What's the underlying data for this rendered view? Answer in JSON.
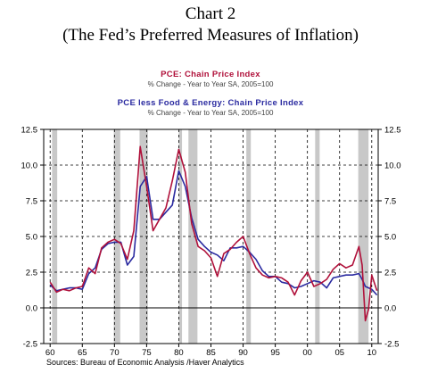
{
  "title": "Chart 2",
  "subtitle": "(The Fed’s Preferred Measures of Inflation)",
  "source": "Sources:  Bureau of Economic Analysis /Haver Analytics",
  "colors": {
    "pce": "#b0103a",
    "core": "#2a2aa0",
    "recession": "#c8c8c8"
  },
  "chart_data": {
    "type": "line",
    "xlim": [
      1959,
      2011
    ],
    "ylim": [
      -2.5,
      12.5
    ],
    "yticks": [
      -2.5,
      0.0,
      2.5,
      5.0,
      7.5,
      10.0,
      12.5
    ],
    "ytick_labels": [
      "-2.5",
      "0.0",
      "2.5",
      "5.0",
      "7.5",
      "10.0",
      "12.5"
    ],
    "xticks": [
      1960,
      1965,
      1970,
      1975,
      1980,
      1985,
      1990,
      1995,
      2000,
      2005,
      2010
    ],
    "xtick_labels": [
      "60",
      "65",
      "70",
      "75",
      "80",
      "85",
      "90",
      "95",
      "00",
      "05",
      "10"
    ],
    "grid": true,
    "recessions": [
      [
        1960.3,
        1961.1
      ],
      [
        1969.9,
        1970.9
      ],
      [
        1973.9,
        1975.2
      ],
      [
        1980.0,
        1980.5
      ],
      [
        1981.5,
        1982.9
      ],
      [
        1990.5,
        1991.2
      ],
      [
        2001.2,
        2001.9
      ],
      [
        2007.9,
        2009.5
      ]
    ],
    "series": [
      {
        "name": "PCE: Chain Price Index",
        "unit_label": "% Change - Year to Year    SA, 2005=100",
        "x": [
          1960,
          1961,
          1962,
          1963,
          1964,
          1965,
          1966,
          1967,
          1968,
          1969,
          1970,
          1971,
          1972,
          1973,
          1974,
          1975,
          1976,
          1977,
          1978,
          1979,
          1980,
          1981,
          1982,
          1983,
          1984,
          1985,
          1986,
          1987,
          1988,
          1989,
          1990,
          1991,
          1992,
          1993,
          1994,
          1995,
          1996,
          1997,
          1998,
          1999,
          2000,
          2001,
          2002,
          2003,
          2004,
          2005,
          2006,
          2007,
          2008,
          2008.5,
          2009,
          2009.5,
          2010,
          2010.8
        ],
        "y": [
          1.8,
          1.1,
          1.3,
          1.2,
          1.4,
          1.5,
          2.8,
          2.4,
          4.2,
          4.6,
          4.8,
          4.5,
          3.4,
          5.4,
          11.3,
          8.5,
          5.4,
          6.2,
          7.0,
          8.9,
          11.1,
          9.5,
          5.9,
          4.3,
          4.0,
          3.5,
          2.2,
          3.8,
          4.1,
          4.6,
          5.0,
          3.8,
          2.8,
          2.3,
          2.1,
          2.2,
          2.1,
          1.8,
          0.9,
          1.9,
          2.5,
          1.5,
          1.7,
          2.0,
          2.7,
          3.1,
          2.8,
          3.0,
          4.3,
          3.0,
          -0.9,
          -0.1,
          2.3,
          1.2
        ]
      },
      {
        "name": "PCE less Food & Energy: Chain Price Index",
        "unit_label": "% Change - Year to Year    SA, 2005=100",
        "x": [
          1960,
          1961,
          1962,
          1963,
          1964,
          1965,
          1966,
          1967,
          1968,
          1969,
          1970,
          1971,
          1972,
          1973,
          1974,
          1975,
          1976,
          1977,
          1978,
          1979,
          1980,
          1981,
          1982,
          1983,
          1984,
          1985,
          1986,
          1987,
          1988,
          1989,
          1990,
          1991,
          1992,
          1993,
          1994,
          1995,
          1996,
          1997,
          1998,
          1999,
          2000,
          2001,
          2002,
          2003,
          2004,
          2005,
          2006,
          2007,
          2008,
          2008.5,
          2009,
          2009.5,
          2010,
          2010.8
        ],
        "y": [
          1.6,
          1.2,
          1.3,
          1.4,
          1.4,
          1.3,
          2.4,
          2.8,
          4.1,
          4.5,
          4.6,
          4.6,
          3.0,
          3.6,
          8.5,
          9.2,
          6.2,
          6.2,
          6.7,
          7.2,
          9.6,
          8.5,
          6.3,
          4.8,
          4.3,
          3.9,
          3.7,
          3.3,
          4.2,
          4.2,
          4.3,
          3.9,
          3.4,
          2.6,
          2.2,
          2.2,
          1.8,
          1.7,
          1.4,
          1.5,
          1.7,
          1.9,
          1.8,
          1.4,
          2.1,
          2.2,
          2.3,
          2.3,
          2.4,
          2.0,
          1.5,
          1.4,
          1.3,
          0.9
        ]
      }
    ]
  }
}
